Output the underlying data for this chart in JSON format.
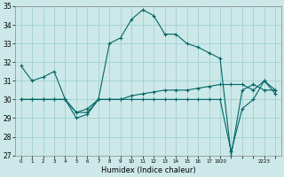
{
  "title": "",
  "xlabel": "Humidex (Indice chaleur)",
  "bg_color": "#cce8e8",
  "line_color": "#006666",
  "grid_color": "#99cccc",
  "hours": [
    0,
    1,
    2,
    3,
    4,
    5,
    6,
    7,
    8,
    9,
    10,
    11,
    12,
    13,
    14,
    15,
    16,
    17,
    18,
    19,
    20,
    21,
    22,
    23
  ],
  "line_main": [
    31.8,
    31.0,
    31.2,
    31.5,
    30.0,
    29.0,
    29.2,
    30.0,
    33.0,
    33.3,
    34.3,
    34.8,
    34.5,
    33.5,
    33.5,
    33.0,
    32.8,
    32.5,
    32.2,
    27.0,
    30.5,
    30.8,
    30.5,
    30.5
  ],
  "line_mid": [
    30.0,
    30.0,
    30.0,
    30.0,
    30.0,
    29.3,
    29.5,
    30.0,
    30.0,
    30.0,
    30.2,
    30.3,
    30.4,
    30.5,
    30.5,
    30.5,
    30.6,
    30.7,
    30.8,
    30.8,
    30.8,
    30.5,
    31.0,
    30.5
  ],
  "line_low": [
    30.0,
    30.0,
    30.0,
    30.0,
    30.0,
    29.3,
    29.3,
    30.0,
    30.0,
    30.0,
    30.0,
    30.0,
    30.0,
    30.0,
    30.0,
    30.0,
    30.0,
    30.0,
    30.0,
    27.2,
    29.5,
    30.0,
    31.0,
    30.3
  ],
  "ylim": [
    27,
    35
  ],
  "yticks": [
    27,
    28,
    29,
    30,
    31,
    32,
    33,
    34,
    35
  ],
  "xtick_labels": [
    "0",
    "1",
    "2",
    "3",
    "4",
    "5",
    "6",
    "7",
    "8",
    "9",
    "10",
    "11",
    "12",
    "13",
    "14",
    "15",
    "16",
    "17",
    "1920",
    "",
    "2223",
    "",
    "",
    ""
  ]
}
